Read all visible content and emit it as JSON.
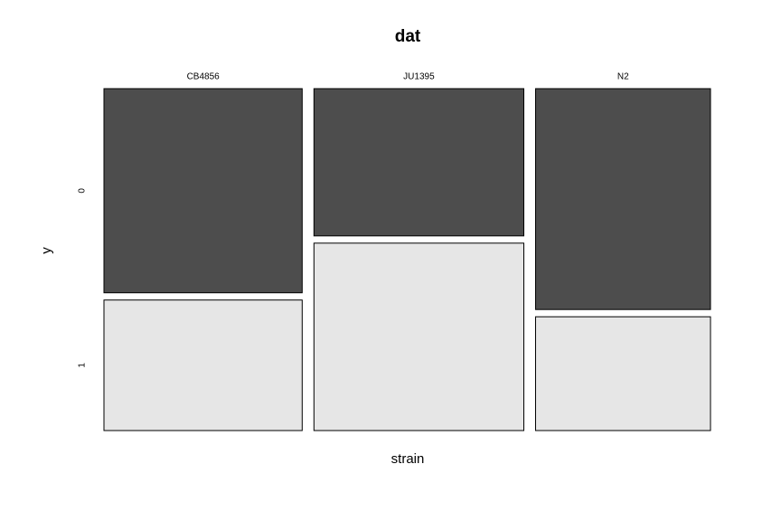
{
  "chart_data": {
    "type": "mosaic",
    "title": "dat",
    "x_label": "strain",
    "y_label": "y",
    "categories": [
      "CB4856",
      "JU1395",
      "N2"
    ],
    "widths": [
      0.34,
      0.36,
      0.3
    ],
    "series": [
      {
        "name": "0",
        "color": "#4d4d4d",
        "values": [
          0.61,
          0.44,
          0.66
        ]
      },
      {
        "name": "1",
        "color": "#e6e6e6",
        "values": [
          0.39,
          0.56,
          0.34
        ]
      }
    ]
  }
}
